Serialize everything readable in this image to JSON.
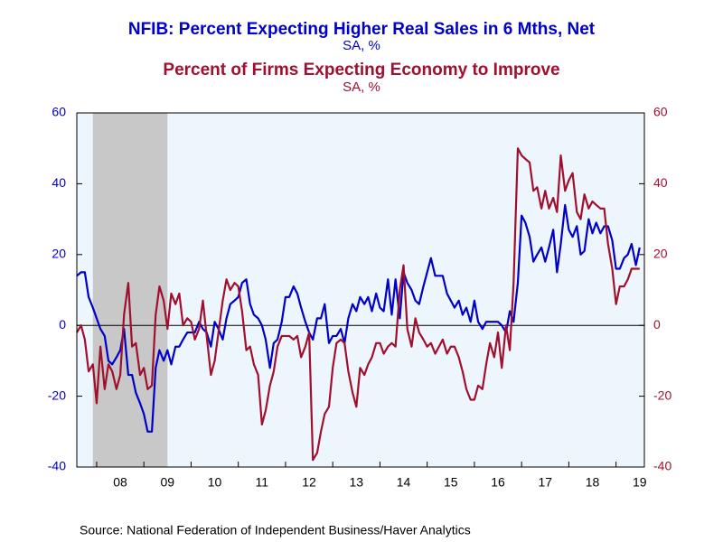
{
  "chart_data": {
    "type": "line",
    "title": "NFIB: Percent Expecting Higher Real Sales in 6 Mths, Net",
    "subtitle": "SA, %",
    "title2": "Percent of Firms Expecting Economy to Improve",
    "subtitle2": "SA, %",
    "source": "Source:  National Federation of Independent Business/Haver Analytics",
    "recession": [
      2007.92,
      2009.5
    ],
    "x": [
      2007.58,
      2007.67,
      2007.75,
      2007.83,
      2007.92,
      2008.0,
      2008.08,
      2008.17,
      2008.25,
      2008.33,
      2008.42,
      2008.5,
      2008.58,
      2008.67,
      2008.75,
      2008.83,
      2008.92,
      2009.0,
      2009.08,
      2009.17,
      2009.25,
      2009.33,
      2009.42,
      2009.5,
      2009.58,
      2009.67,
      2009.75,
      2009.83,
      2009.92,
      2010.0,
      2010.08,
      2010.17,
      2010.25,
      2010.33,
      2010.42,
      2010.5,
      2010.58,
      2010.67,
      2010.75,
      2010.83,
      2010.92,
      2011.0,
      2011.08,
      2011.17,
      2011.25,
      2011.33,
      2011.42,
      2011.5,
      2011.58,
      2011.67,
      2011.75,
      2011.83,
      2011.92,
      2012.0,
      2012.08,
      2012.17,
      2012.25,
      2012.33,
      2012.42,
      2012.5,
      2012.58,
      2012.67,
      2012.75,
      2012.83,
      2012.92,
      2013.0,
      2013.08,
      2013.17,
      2013.25,
      2013.33,
      2013.42,
      2013.5,
      2013.58,
      2013.67,
      2013.75,
      2013.83,
      2013.92,
      2014.0,
      2014.08,
      2014.17,
      2014.25,
      2014.33,
      2014.42,
      2014.5,
      2014.58,
      2014.67,
      2014.75,
      2014.83,
      2014.92,
      2015.0,
      2015.08,
      2015.17,
      2015.25,
      2015.33,
      2015.42,
      2015.5,
      2015.58,
      2015.67,
      2015.75,
      2015.83,
      2015.92,
      2016.0,
      2016.08,
      2016.17,
      2016.25,
      2016.33,
      2016.42,
      2016.5,
      2016.58,
      2016.67,
      2016.75,
      2016.83,
      2016.92,
      2017.0,
      2017.08,
      2017.17,
      2017.25,
      2017.33,
      2017.42,
      2017.5,
      2017.58,
      2017.67,
      2017.75,
      2017.83,
      2017.92,
      2018.0,
      2018.08,
      2018.17,
      2018.25,
      2018.33,
      2018.42,
      2018.5,
      2018.58,
      2018.67,
      2018.75,
      2018.83,
      2018.92,
      2019.0,
      2019.08,
      2019.17,
      2019.25,
      2019.33,
      2019.42,
      2019.5
    ],
    "series": [
      {
        "name": "NFIB: Percent Expecting Higher Real Sales in 6 Mths, Net",
        "color": "#0000c8",
        "axis": "y",
        "values": [
          14,
          15,
          15,
          8,
          5,
          2,
          -1,
          -3,
          -10,
          -11,
          -9,
          -7,
          -1,
          -14,
          -14,
          -19,
          -22,
          -25,
          -30,
          -30,
          -12,
          -7,
          -10,
          -7,
          -11,
          -6,
          -6,
          -4,
          -2,
          -2,
          -2,
          1,
          -1,
          -2,
          -6,
          1,
          -1,
          -4,
          2,
          6,
          7,
          8,
          12,
          13,
          6,
          3,
          2,
          0,
          -4,
          -12,
          -5,
          -4,
          1,
          8,
          8,
          11,
          9,
          5,
          1,
          -2,
          -4,
          2,
          2,
          6,
          -5,
          -3,
          -3,
          -1,
          -5,
          2,
          6,
          4,
          8,
          6,
          8,
          4,
          9,
          5,
          4,
          13,
          3,
          13,
          2,
          15,
          12,
          10,
          7,
          6,
          11,
          15,
          19,
          14,
          14,
          14,
          9,
          7,
          5,
          7,
          3,
          5,
          1,
          7,
          1,
          -1,
          1,
          1,
          1,
          1,
          0,
          -2,
          4,
          1,
          12,
          31,
          29,
          25,
          18,
          20,
          22,
          18,
          22,
          27,
          15,
          23,
          34,
          27,
          25,
          28,
          20,
          21,
          30,
          26,
          29,
          26,
          28,
          28,
          24,
          16,
          16,
          19,
          20,
          23,
          17,
          22
        ]
      },
      {
        "name": "Percent of Firms Expecting Economy to Improve",
        "color": "#a0102e",
        "axis": "y2",
        "values": [
          -2,
          0,
          -4,
          -13,
          -11,
          -22,
          -6,
          -18,
          -11,
          -13,
          -18,
          -14,
          3,
          12,
          -6,
          -5,
          -14,
          -12,
          -18,
          -17,
          3,
          11,
          7,
          -1,
          9,
          6,
          9,
          0,
          2,
          1,
          -4,
          -1,
          7,
          -3,
          -14,
          -10,
          -2,
          7,
          13,
          10,
          12,
          11,
          4,
          -7,
          -6,
          -11,
          -14,
          -28,
          -24,
          -17,
          -13,
          -6,
          -3,
          -3,
          -3,
          -4,
          -3,
          -9,
          -6,
          -2,
          -38,
          -36,
          -30,
          -25,
          -23,
          -12,
          -5,
          -4,
          -5,
          -13,
          -19,
          -23,
          -12,
          -14,
          -11,
          -9,
          -5,
          -5,
          -8,
          -6,
          -5,
          -6,
          10,
          17,
          -1,
          -6,
          2,
          -2,
          -4,
          -6,
          -5,
          -8,
          -6,
          -4,
          -8,
          -6,
          -6,
          -9,
          -13,
          -18,
          -21,
          -21,
          -17,
          -18,
          -11,
          -5,
          -9,
          -2,
          -12,
          0,
          -7,
          12,
          50,
          48,
          47,
          46,
          38,
          39,
          33,
          38,
          33,
          36,
          32,
          48,
          38,
          41,
          43,
          32,
          30,
          37,
          33,
          35,
          34,
          33,
          33,
          23,
          16,
          6,
          11,
          11,
          13,
          16,
          16,
          16
        ]
      }
    ],
    "xlim": [
      2007.58,
      2019.6
    ],
    "xticks": [
      {
        "value": 2008.5,
        "label": "08"
      },
      {
        "value": 2009.5,
        "label": "09"
      },
      {
        "value": 2010.5,
        "label": "10"
      },
      {
        "value": 2011.5,
        "label": "11"
      },
      {
        "value": 2012.5,
        "label": "12"
      },
      {
        "value": 2013.5,
        "label": "13"
      },
      {
        "value": 2014.5,
        "label": "14"
      },
      {
        "value": 2015.5,
        "label": "15"
      },
      {
        "value": 2016.5,
        "label": "16"
      },
      {
        "value": 2017.5,
        "label": "17"
      },
      {
        "value": 2018.5,
        "label": "18"
      },
      {
        "value": 2019.5,
        "label": "19"
      }
    ],
    "ylim": [
      -40,
      60
    ],
    "yticks": [
      -40,
      -20,
      0,
      20,
      40,
      60
    ],
    "y2lim": [
      -40,
      60
    ],
    "y2ticks": [
      -40,
      -20,
      0,
      20,
      40,
      60
    ]
  }
}
